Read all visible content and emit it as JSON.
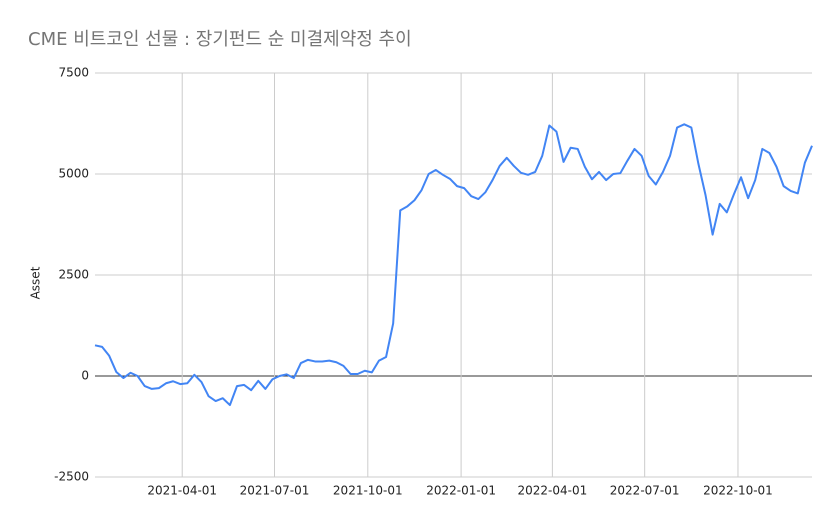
{
  "chart_data": {
    "type": "line",
    "title": "CME 비트코인 선물 : 장기펀드 순 미결제약정 추이",
    "y_label": "Asset",
    "x": [
      "2021-01-05",
      "2021-01-12",
      "2021-01-19",
      "2021-01-26",
      "2021-02-02",
      "2021-02-09",
      "2021-02-16",
      "2021-02-23",
      "2021-03-02",
      "2021-03-09",
      "2021-03-16",
      "2021-03-23",
      "2021-03-30",
      "2021-04-06",
      "2021-04-13",
      "2021-04-20",
      "2021-04-27",
      "2021-05-04",
      "2021-05-11",
      "2021-05-18",
      "2021-05-25",
      "2021-06-01",
      "2021-06-08",
      "2021-06-15",
      "2021-06-22",
      "2021-06-29",
      "2021-07-06",
      "2021-07-13",
      "2021-07-20",
      "2021-07-27",
      "2021-08-03",
      "2021-08-10",
      "2021-08-17",
      "2021-08-24",
      "2021-08-31",
      "2021-09-07",
      "2021-09-14",
      "2021-09-21",
      "2021-09-28",
      "2021-10-05",
      "2021-10-12",
      "2021-10-19",
      "2021-10-26",
      "2021-11-02",
      "2021-11-09",
      "2021-11-16",
      "2021-11-23",
      "2021-11-30",
      "2021-12-07",
      "2021-12-14",
      "2021-12-21",
      "2021-12-28",
      "2022-01-04",
      "2022-01-11",
      "2022-01-18",
      "2022-01-25",
      "2022-02-01",
      "2022-02-08",
      "2022-02-15",
      "2022-02-22",
      "2022-03-01",
      "2022-03-08",
      "2022-03-15",
      "2022-03-22",
      "2022-03-29",
      "2022-04-05",
      "2022-04-12",
      "2022-04-19",
      "2022-04-26",
      "2022-05-03",
      "2022-05-10",
      "2022-05-17",
      "2022-05-24",
      "2022-05-31",
      "2022-06-07",
      "2022-06-14",
      "2022-06-21",
      "2022-06-28",
      "2022-07-05",
      "2022-07-12",
      "2022-07-19",
      "2022-07-26",
      "2022-08-02",
      "2022-08-09",
      "2022-08-16",
      "2022-08-23",
      "2022-08-30",
      "2022-09-06",
      "2022-09-13",
      "2022-09-20",
      "2022-09-27",
      "2022-10-04",
      "2022-10-11",
      "2022-10-18",
      "2022-10-25",
      "2022-11-01",
      "2022-11-08",
      "2022-11-15",
      "2022-11-22",
      "2022-11-29",
      "2022-12-06",
      "2022-12-13"
    ],
    "series": [
      {
        "name": "Asset",
        "color": "#4285f4",
        "values": [
          760,
          720,
          500,
          100,
          -50,
          80,
          0,
          -250,
          -320,
          -300,
          -180,
          -130,
          -200,
          -180,
          30,
          -150,
          -500,
          -620,
          -550,
          -720,
          -250,
          -220,
          -350,
          -120,
          -320,
          -80,
          0,
          40,
          -50,
          320,
          400,
          360,
          360,
          380,
          340,
          250,
          50,
          50,
          130,
          90,
          380,
          470,
          1300,
          4100,
          4200,
          4350,
          4600,
          5000,
          5100,
          4980,
          4880,
          4700,
          4650,
          4450,
          4380,
          4550,
          4850,
          5200,
          5400,
          5200,
          5030,
          4980,
          5050,
          5450,
          6200,
          6050,
          5300,
          5650,
          5620,
          5180,
          4870,
          5050,
          4850,
          5000,
          5020,
          5330,
          5620,
          5450,
          4950,
          4740,
          5050,
          5450,
          6150,
          6230,
          6150,
          5250,
          4480,
          3500,
          4260,
          4050,
          4500,
          4920,
          4400,
          4850,
          5620,
          5520,
          5180,
          4700,
          4580,
          4520,
          5280,
          5700
        ]
      }
    ],
    "xlim": [
      "2021-01-05",
      "2022-12-13"
    ],
    "xticks": [
      "2021-04-01",
      "2021-07-01",
      "2021-10-01",
      "2022-01-01",
      "2022-04-01",
      "2022-07-01",
      "2022-10-01"
    ],
    "ylim": [
      -2500,
      7500
    ],
    "yticks": [
      -2500,
      0,
      2500,
      5000,
      7500
    ],
    "grid": true
  }
}
